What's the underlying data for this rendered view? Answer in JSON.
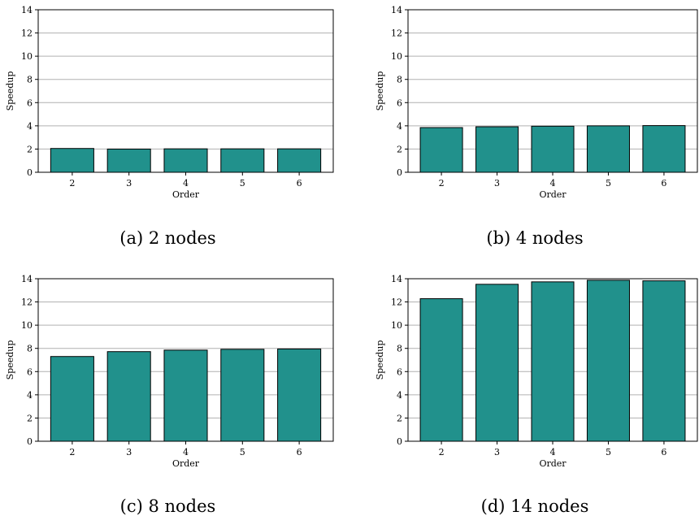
{
  "chart_data": [
    {
      "type": "bar",
      "caption": "(a) 2 nodes",
      "categories": [
        "2",
        "3",
        "4",
        "5",
        "6"
      ],
      "values": [
        2.05,
        2.0,
        2.02,
        2.02,
        2.02
      ],
      "xlabel": "Order",
      "ylabel": "Speedup",
      "ylim": [
        0,
        14
      ],
      "yticks": [
        "0",
        "2",
        "4",
        "6",
        "8",
        "10",
        "12",
        "14"
      ],
      "grid": true,
      "bar_color": "#21918c"
    },
    {
      "type": "bar",
      "caption": "(b) 4 nodes",
      "categories": [
        "2",
        "3",
        "4",
        "5",
        "6"
      ],
      "values": [
        3.85,
        3.92,
        3.97,
        4.0,
        4.02
      ],
      "xlabel": "Order",
      "ylabel": "Speedup",
      "ylim": [
        0,
        14
      ],
      "yticks": [
        "0",
        "2",
        "4",
        "6",
        "8",
        "10",
        "12",
        "14"
      ],
      "grid": true,
      "bar_color": "#21918c"
    },
    {
      "type": "bar",
      "caption": "(c) 8 nodes",
      "categories": [
        "2",
        "3",
        "4",
        "5",
        "6"
      ],
      "values": [
        7.3,
        7.72,
        7.85,
        7.92,
        7.95
      ],
      "xlabel": "Order",
      "ylabel": "Speedup",
      "ylim": [
        0,
        14
      ],
      "yticks": [
        "0",
        "2",
        "4",
        "6",
        "8",
        "10",
        "12",
        "14"
      ],
      "grid": true,
      "bar_color": "#21918c"
    },
    {
      "type": "bar",
      "caption": "(d) 14 nodes",
      "categories": [
        "2",
        "3",
        "4",
        "5",
        "6"
      ],
      "values": [
        12.28,
        13.52,
        13.73,
        13.87,
        13.82
      ],
      "xlabel": "Order",
      "ylabel": "Speedup",
      "ylim": [
        0,
        14
      ],
      "yticks": [
        "0",
        "2",
        "4",
        "6",
        "8",
        "10",
        "12",
        "14"
      ],
      "grid": true,
      "bar_color": "#21918c"
    }
  ]
}
